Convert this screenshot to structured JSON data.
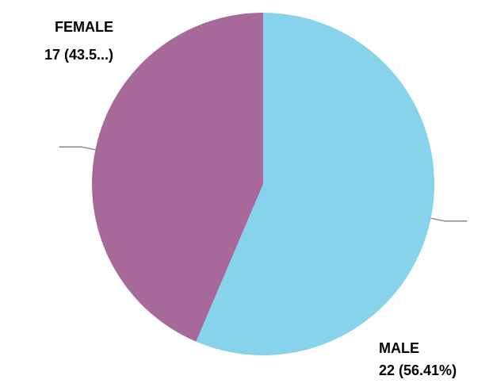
{
  "chart_data": {
    "type": "pie",
    "title": "",
    "series": [
      {
        "values": [
          22,
          17
        ]
      }
    ],
    "categories": [
      "MALE",
      "FEMALE"
    ],
    "values": [
      22,
      17
    ],
    "slices": [
      {
        "label": "MALE",
        "value": 22,
        "value_text": "22 (56.41%)",
        "color": "#87D3EB"
      },
      {
        "label": "FEMALE",
        "value": 17,
        "value_text": "17 (43.5...)",
        "color": "#A66999"
      }
    ],
    "leader_line_color": "#888888",
    "legend": "none"
  }
}
